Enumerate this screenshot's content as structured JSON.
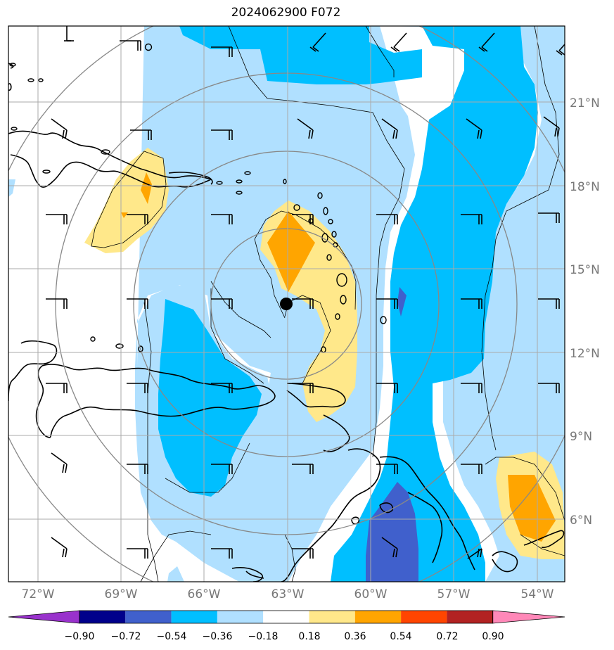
{
  "title": "2024062900 F072",
  "map": {
    "lon_labels": [
      "72°W",
      "69°W",
      "66°W",
      "63°W",
      "60°W",
      "57°W",
      "54°W"
    ],
    "lat_labels": [
      "6°N",
      "9°N",
      "12°N",
      "15°N",
      "18°N",
      "21°N"
    ],
    "center_marker": {
      "lon": -63.0,
      "lat": 13.7
    }
  },
  "colorbar": {
    "ticks": [
      "−0.90",
      "−0.72",
      "−0.54",
      "−0.36",
      "−0.18",
      "0.18",
      "0.36",
      "0.54",
      "0.72",
      "0.90"
    ],
    "colors": [
      "#9932cc",
      "#00008b",
      "#4060cc",
      "#00bfff",
      "#b0e0ff",
      "#ffffff",
      "#ffe88a",
      "#ffa500",
      "#ff4500",
      "#b22222",
      "#ff88b8"
    ]
  },
  "colors": {
    "light_blue": "#b0e0ff",
    "blue": "#00bfff",
    "dark_blue": "#4060cc",
    "light_yellow": "#ffe88a",
    "orange": "#ffa500",
    "grid": "#999999"
  }
}
